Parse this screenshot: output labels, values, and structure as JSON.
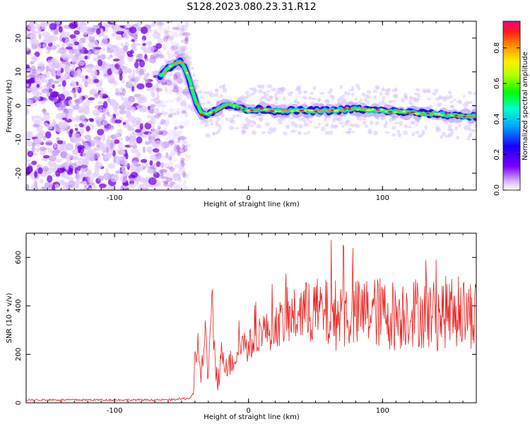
{
  "title": "S128.2023.080.23.31.R12",
  "chart_data": [
    {
      "type": "heatmap",
      "xlabel": "Height of straight line (km)",
      "ylabel": "Frequency (Hz)",
      "xlim": [
        -166,
        170
      ],
      "ylim": [
        -25,
        25
      ],
      "x_ticks": [
        -100,
        0,
        100
      ],
      "x_tick_labels": [
        "-100",
        "0",
        "100"
      ],
      "y_ticks": [
        -20,
        -10,
        0,
        10,
        20
      ],
      "y_tick_labels": [
        "-20",
        "-10",
        "0",
        "10",
        "20"
      ],
      "ridge": {
        "x": [
          -65,
          -60,
          -55,
          -50,
          -45,
          -40,
          -35,
          -30,
          -25,
          -20,
          -15,
          -10,
          -5,
          0,
          10,
          20,
          40,
          60,
          80,
          100,
          120,
          140,
          160,
          166
        ],
        "y": [
          9,
          11,
          12.5,
          13,
          9,
          2,
          -2.5,
          -2.5,
          -1.5,
          -0.5,
          0.5,
          0,
          -1,
          -1.5,
          -1,
          -1.5,
          -1.5,
          -1.5,
          -1,
          -1.5,
          -2,
          -2.5,
          -3,
          -3.2
        ]
      },
      "noise_region_x": [
        -166,
        -55
      ],
      "colorbar": {
        "label": "Normalized spectral amplitude",
        "range": [
          0,
          0.95
        ],
        "ticks": [
          0.0,
          0.2,
          0.4,
          0.6,
          0.8
        ],
        "tick_labels": [
          "0.0",
          "0.2",
          "0.4",
          "0.6",
          "0.8"
        ]
      }
    },
    {
      "type": "line",
      "xlabel": "Height of straight line (km)",
      "ylabel": "SNR (10 * v/v)",
      "xlim": [
        -166,
        170
      ],
      "ylim": [
        0,
        700
      ],
      "x_ticks": [
        -100,
        0,
        100
      ],
      "x_tick_labels": [
        "-100",
        "0",
        "100"
      ],
      "y_ticks": [
        0,
        200,
        400,
        600
      ],
      "y_tick_labels": [
        "0",
        "200",
        "400",
        "600"
      ],
      "series": [
        {
          "color": "#e8201c",
          "x": [
            -166,
            -140,
            -110,
            -80,
            -60,
            -45,
            -41,
            -40,
            -38,
            -35,
            -32,
            -30,
            -27,
            -25,
            -22,
            -20,
            -15,
            -10,
            -5,
            0,
            5,
            10,
            15,
            20,
            25,
            30,
            35,
            40,
            50,
            60,
            70,
            80,
            90,
            100,
            110,
            120,
            130,
            140,
            150,
            160,
            166
          ],
          "y": [
            12,
            12,
            12,
            12,
            12,
            18,
            30,
            180,
            240,
            120,
            300,
            80,
            420,
            150,
            100,
            210,
            150,
            190,
            250,
            230,
            260,
            310,
            290,
            320,
            330,
            340,
            360,
            370,
            380,
            360,
            370,
            360,
            380,
            370,
            360,
            380,
            370,
            360,
            380,
            370,
            370
          ],
          "spread": [
            4,
            4,
            4,
            4,
            4,
            6,
            10,
            60,
            80,
            60,
            90,
            60,
            100,
            80,
            60,
            60,
            60,
            60,
            70,
            70,
            70,
            80,
            80,
            90,
            100,
            110,
            120,
            130,
            140,
            150,
            150,
            150,
            150,
            150,
            150,
            150,
            150,
            150,
            150,
            150,
            150
          ]
        }
      ]
    }
  ]
}
